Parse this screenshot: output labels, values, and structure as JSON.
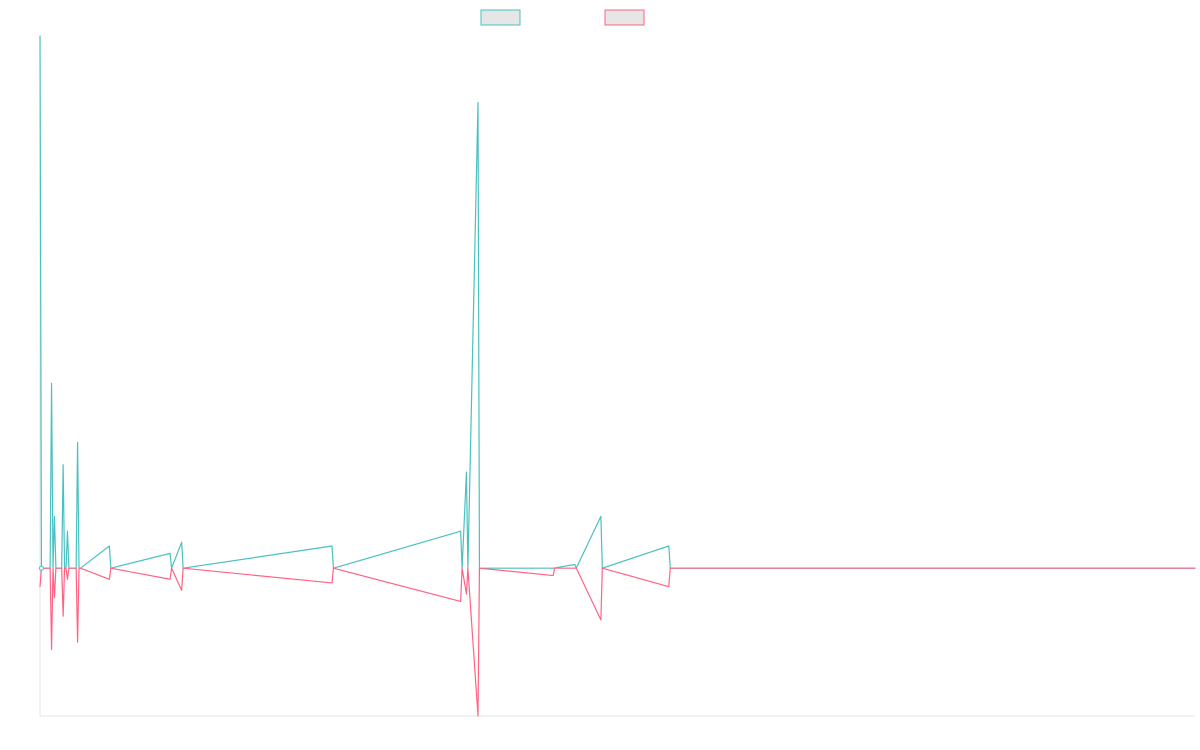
{
  "chart_data": {
    "type": "line",
    "title": "",
    "xlabel": "",
    "ylabel": "",
    "grid": false,
    "legend": {
      "position": "top-center",
      "entries": [
        {
          "label": "",
          "color": "#4bc0c0"
        },
        {
          "label": "",
          "color": "#ff6384"
        }
      ]
    },
    "x": [
      0,
      1,
      2,
      3,
      4,
      5,
      6,
      7,
      8,
      9,
      10,
      11,
      12,
      13,
      14,
      15,
      16,
      17,
      18,
      19,
      20,
      21,
      22,
      23,
      24,
      25,
      26,
      27,
      28,
      29,
      30,
      31,
      32,
      33,
      34,
      35,
      36,
      37,
      38,
      39,
      40,
      41,
      42,
      43,
      44,
      45,
      46,
      47,
      48,
      49,
      50,
      51,
      52,
      53,
      54,
      55,
      56,
      57,
      58,
      59,
      60,
      61,
      62,
      63,
      64,
      65,
      66,
      67,
      68,
      69,
      70,
      71,
      72,
      73,
      74,
      75,
      76,
      77,
      78,
      79,
      80,
      81,
      82,
      83,
      84,
      85,
      86,
      87,
      88,
      89,
      90,
      91,
      92,
      93,
      94,
      95,
      96,
      97,
      98,
      99,
      100,
      101,
      102,
      103,
      104,
      105,
      106,
      107,
      108,
      109,
      110,
      111,
      112,
      113,
      114,
      115,
      116,
      117,
      118,
      119,
      120,
      121,
      122,
      123,
      124,
      125,
      126,
      127,
      128,
      129,
      130,
      131,
      132,
      133,
      134,
      135,
      136,
      137,
      138,
      139,
      140,
      141,
      142,
      143,
      144,
      145,
      146,
      147,
      148,
      149,
      150,
      151,
      152,
      153,
      154,
      155,
      156,
      157,
      158,
      159,
      160,
      161,
      162,
      163,
      164,
      165,
      166,
      167,
      168,
      169,
      170,
      171,
      172,
      173,
      174,
      175,
      176,
      177,
      178,
      179,
      180,
      181,
      182,
      183,
      184,
      185,
      186,
      187,
      188,
      189,
      190,
      191,
      192,
      193,
      194,
      195,
      196,
      197,
      198,
      199,
      200,
      201,
      202,
      203,
      204,
      205,
      206,
      207,
      208,
      209,
      210,
      211,
      212,
      213,
      214,
      215,
      216,
      217,
      218,
      219,
      220,
      221,
      222,
      223,
      224,
      225,
      226,
      227,
      228,
      229,
      230,
      231,
      232,
      233,
      234,
      235,
      236,
      237,
      238,
      239,
      240,
      241,
      242,
      243,
      244,
      245,
      246,
      247,
      248,
      249,
      250,
      251,
      252,
      253,
      254,
      255,
      256,
      257,
      258,
      259,
      260,
      261,
      262,
      263,
      264,
      265,
      266,
      267,
      268,
      269,
      270,
      271,
      272,
      273,
      274,
      275,
      276,
      277,
      278,
      279,
      280,
      281,
      282,
      283,
      284,
      285,
      286,
      287,
      288,
      289,
      290,
      291,
      292,
      293,
      294,
      295,
      296,
      297,
      298,
      299,
      300,
      301,
      302,
      303,
      304,
      305,
      306,
      307,
      308,
      309,
      310,
      311,
      312,
      313,
      314,
      315,
      316,
      317,
      318,
      319,
      320,
      321,
      322,
      323,
      324,
      325,
      326,
      327,
      328,
      329,
      330,
      331,
      332,
      333,
      334,
      335,
      336,
      337,
      338,
      339,
      340,
      341,
      342,
      343,
      344,
      345,
      346,
      347,
      348,
      349,
      350,
      351,
      352,
      353,
      354,
      355,
      356,
      357,
      358,
      359,
      360,
      361,
      362,
      363,
      364,
      365,
      366,
      367,
      368,
      369,
      370,
      371,
      372,
      373,
      374,
      375,
      376,
      377,
      378,
      379,
      380,
      381,
      382,
      383,
      384,
      385,
      386,
      387,
      388,
      389,
      390,
      391,
      392,
      393,
      394,
      395,
      396,
      397,
      398,
      399,
      400,
      401,
      402,
      403,
      404,
      405,
      406,
      407,
      408,
      409,
      410,
      411,
      412,
      413,
      414,
      415,
      416,
      417,
      418,
      419,
      420,
      421,
      422,
      423,
      424,
      425,
      426,
      427,
      428,
      429,
      430,
      431,
      432,
      433,
      434,
      435,
      436,
      437,
      438,
      439,
      440,
      441,
      442,
      443,
      444,
      445,
      446,
      447,
      448,
      449,
      450,
      451,
      452,
      453,
      454,
      455,
      456,
      457,
      458,
      459,
      460,
      461,
      462,
      463,
      464,
      465,
      466,
      467,
      468,
      469,
      470,
      471,
      472,
      473,
      474,
      475,
      476,
      477,
      478,
      479,
      480,
      481,
      482,
      483,
      484,
      485,
      486,
      487,
      488,
      489,
      490,
      491,
      492,
      493,
      494,
      495,
      496,
      497,
      498,
      499,
      500,
      501,
      502,
      503,
      504,
      505,
      506,
      507,
      508,
      509,
      510,
      511,
      512,
      513,
      514,
      515,
      516,
      517,
      518,
      519,
      520,
      521,
      522,
      523,
      524,
      525,
      526,
      527,
      528,
      529,
      530,
      531,
      532,
      533,
      534,
      535,
      536,
      537,
      538,
      539,
      540,
      541,
      542,
      543,
      544,
      545,
      546,
      547,
      548,
      549,
      550,
      551,
      552,
      553,
      554,
      555,
      556,
      557,
      558,
      559,
      560,
      561,
      562,
      563,
      564,
      565,
      566,
      567,
      568,
      569,
      570,
      571,
      572,
      573,
      574,
      575,
      576,
      577,
      578,
      579,
      580,
      581,
      582,
      583,
      584,
      585,
      586,
      587,
      588,
      589,
      590,
      591,
      592,
      593,
      594,
      595,
      596,
      597,
      598,
      599,
      600,
      601,
      602,
      603,
      604,
      605,
      606,
      607,
      608,
      609,
      610,
      611,
      612,
      613,
      614,
      615,
      616,
      617,
      618,
      619,
      620,
      621,
      622,
      623,
      624,
      625,
      626,
      627,
      628,
      629,
      630,
      631,
      632,
      633,
      634,
      635,
      636,
      637,
      638,
      639,
      640,
      641,
      642,
      643,
      644,
      645,
      646,
      647,
      648,
      649,
      650,
      651,
      652,
      653,
      654,
      655,
      656,
      657,
      658,
      659,
      660,
      661,
      662,
      663,
      664,
      665,
      666,
      667,
      668,
      669,
      670,
      671,
      672,
      673,
      674,
      675,
      676,
      677,
      678,
      679,
      680,
      681,
      682,
      683,
      684,
      685,
      686,
      687,
      688,
      689,
      690,
      691,
      692,
      693,
      694,
      695,
      696,
      697,
      698,
      699,
      700,
      701,
      702,
      703,
      704,
      705,
      706,
      707,
      708,
      709,
      710,
      711,
      712,
      713,
      714,
      715,
      716,
      717,
      718,
      719,
      720,
      721,
      722,
      723,
      724,
      725,
      726,
      727,
      728,
      729,
      730,
      731,
      732,
      733,
      734,
      735,
      736,
      737,
      738,
      739,
      740,
      741,
      742,
      743,
      744,
      745,
      746,
      747,
      748,
      749,
      750,
      751,
      752,
      753,
      754,
      755,
      756,
      757,
      758,
      759,
      760,
      761,
      762,
      763,
      764,
      765,
      766,
      767,
      768,
      769,
      770,
      771,
      772,
      773,
      774,
      775,
      776,
      777,
      778,
      779,
      780,
      781,
      782,
      783,
      784,
      785,
      786,
      787,
      788,
      789,
      790,
      791,
      792,
      793,
      794,
      795,
      796,
      797,
      798,
      799
    ],
    "ylim": [
      -20,
      72
    ],
    "series": [
      {
        "color": "#4bc0c0",
        "points": [
          [
            0,
            72
          ],
          [
            1,
            0
          ],
          [
            2,
            0
          ],
          [
            3,
            0
          ],
          [
            4,
            0
          ],
          [
            5,
            0
          ],
          [
            6,
            0
          ],
          [
            7,
            0
          ],
          [
            8,
            25
          ],
          [
            9,
            0
          ],
          [
            10,
            7
          ],
          [
            11,
            0
          ],
          [
            12,
            0
          ],
          [
            13,
            0
          ],
          [
            14,
            0
          ],
          [
            15,
            0
          ],
          [
            16,
            14
          ],
          [
            17,
            0
          ],
          [
            18,
            0
          ],
          [
            19,
            5
          ],
          [
            20,
            0
          ],
          [
            21,
            0
          ],
          [
            22,
            0
          ],
          [
            23,
            0
          ],
          [
            24,
            0
          ],
          [
            25,
            0
          ],
          [
            26,
            17
          ],
          [
            27,
            0
          ],
          [
            28,
            0
          ],
          [
            48,
            3
          ],
          [
            49,
            0
          ],
          [
            90,
            2
          ],
          [
            91,
            0
          ],
          [
            98,
            3.5
          ],
          [
            99,
            0
          ],
          [
            202,
            3
          ],
          [
            203,
            0
          ],
          [
            291,
            5
          ],
          [
            292,
            0
          ],
          [
            295,
            13
          ],
          [
            296,
            0
          ],
          [
            303,
            63
          ],
          [
            304,
            0
          ],
          [
            355,
            0
          ],
          [
            370,
            0.5
          ],
          [
            371,
            0
          ],
          [
            388,
            7
          ],
          [
            389,
            0
          ],
          [
            435,
            3
          ],
          [
            436,
            0
          ],
          [
            799,
            0
          ]
        ]
      },
      {
        "color": "#ff6384",
        "points": [
          [
            0,
            -2.5
          ],
          [
            1,
            0
          ],
          [
            2,
            0
          ],
          [
            3,
            0
          ],
          [
            4,
            0
          ],
          [
            5,
            0
          ],
          [
            6,
            0
          ],
          [
            7,
            0
          ],
          [
            8,
            -11
          ],
          [
            9,
            0
          ],
          [
            10,
            -4
          ],
          [
            11,
            0
          ],
          [
            12,
            0
          ],
          [
            13,
            0
          ],
          [
            14,
            0
          ],
          [
            15,
            0
          ],
          [
            16,
            -6.5
          ],
          [
            17,
            0
          ],
          [
            18,
            0
          ],
          [
            19,
            -1.5
          ],
          [
            20,
            0
          ],
          [
            21,
            0
          ],
          [
            22,
            0
          ],
          [
            23,
            0
          ],
          [
            24,
            0
          ],
          [
            25,
            0
          ],
          [
            26,
            -10
          ],
          [
            27,
            0
          ],
          [
            28,
            0
          ],
          [
            48,
            -1.5
          ],
          [
            49,
            0
          ],
          [
            90,
            -1.5
          ],
          [
            91,
            0
          ],
          [
            98,
            -3
          ],
          [
            99,
            0
          ],
          [
            202,
            -2
          ],
          [
            203,
            0
          ],
          [
            291,
            -4.5
          ],
          [
            292,
            0
          ],
          [
            295,
            -3.5
          ],
          [
            296,
            0
          ],
          [
            303,
            -20
          ],
          [
            304,
            0
          ],
          [
            355,
            -1
          ],
          [
            356,
            0
          ],
          [
            370,
            0
          ],
          [
            371,
            0
          ],
          [
            388,
            -7
          ],
          [
            389,
            0
          ],
          [
            435,
            -2.5
          ],
          [
            436,
            0
          ],
          [
            799,
            0
          ]
        ]
      }
    ]
  }
}
